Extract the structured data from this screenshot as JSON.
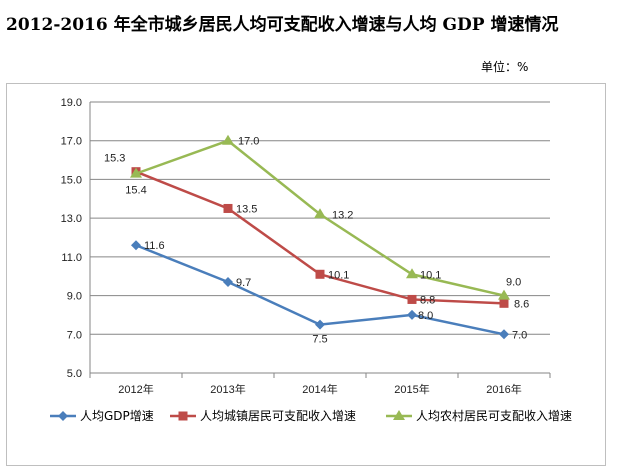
{
  "header": {
    "title": "2012-2016 年全市城乡居民人均可支配收入增速与人均 GDP 增速情况",
    "unit": "单位：%"
  },
  "chart_data": {
    "type": "line",
    "title": "2012-2016 年全市城乡居民人均可支配收入增速与人均 GDP 增速情况",
    "categories": [
      "2012年",
      "2013年",
      "2014年",
      "2015年",
      "2016年"
    ],
    "ylim": [
      5.0,
      19.0
    ],
    "yticks": [
      "5.0",
      "7.0",
      "9.0",
      "11.0",
      "13.0",
      "15.0",
      "17.0",
      "19.0"
    ],
    "grid": true,
    "legend_position": "bottom",
    "series": [
      {
        "name": "人均GDP增速",
        "color": "#4a7ebb",
        "marker": "diamond",
        "values": [
          11.6,
          9.7,
          7.5,
          8.0,
          7.0
        ],
        "labels": [
          "11.6",
          "9.7",
          "7.5",
          "8.0",
          "7.0"
        ]
      },
      {
        "name": "人均城镇居民可支配收入增速",
        "color": "#be4b48",
        "marker": "square",
        "values": [
          15.4,
          13.5,
          10.1,
          8.8,
          8.6
        ],
        "labels": [
          "15.4",
          "13.5",
          "10.1",
          "8.8",
          "8.6"
        ]
      },
      {
        "name": "人均农村居民可支配收入增速",
        "color": "#98b954",
        "marker": "triangle",
        "values": [
          15.3,
          17.0,
          13.2,
          10.1,
          9.0
        ],
        "labels": [
          "15.3",
          "17.0",
          "13.2",
          "10.1",
          "9.0"
        ]
      }
    ]
  }
}
